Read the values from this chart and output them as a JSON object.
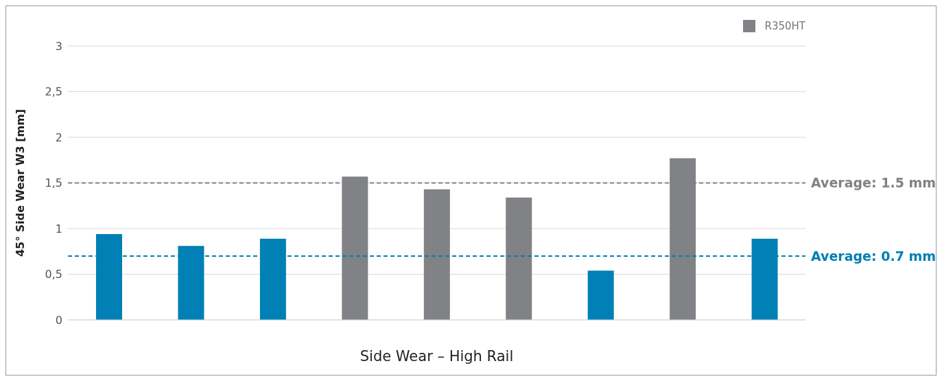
{
  "chart_data": {
    "type": "bar",
    "xlabel": "Side Wear – High Rail",
    "ylabel": "45° Side Wear W3 [mm]",
    "categories": [
      null,
      null,
      null,
      null,
      null,
      null,
      null,
      null,
      null
    ],
    "series": [
      {
        "color": "#0080b4",
        "values": [
          0.94,
          0.81,
          0.89,
          null,
          null,
          null,
          0.54,
          null,
          0.89
        ]
      },
      {
        "name": "R350HT",
        "color": "#818285",
        "values": [
          null,
          null,
          null,
          1.57,
          1.43,
          1.34,
          null,
          1.77,
          null
        ]
      }
    ],
    "ylim": [
      0,
      3
    ],
    "yticks": [
      0,
      {
        "value": 0.5,
        "label": "0,5"
      },
      1,
      {
        "value": 1.5,
        "label": "1,5"
      },
      2,
      {
        "value": 2.5,
        "label": "2,5"
      },
      3
    ],
    "grid": "y",
    "legend": "top right",
    "ref_lines": [
      {
        "axis": "y",
        "value": 1.5,
        "label": "Average: 1.5 mm",
        "color": "#818285",
        "line_style": "dashed"
      },
      {
        "axis": "y",
        "value": 0.7,
        "label": "Average: 0.7 mm",
        "color": "#0080b4",
        "line_style": "dashed"
      }
    ]
  }
}
